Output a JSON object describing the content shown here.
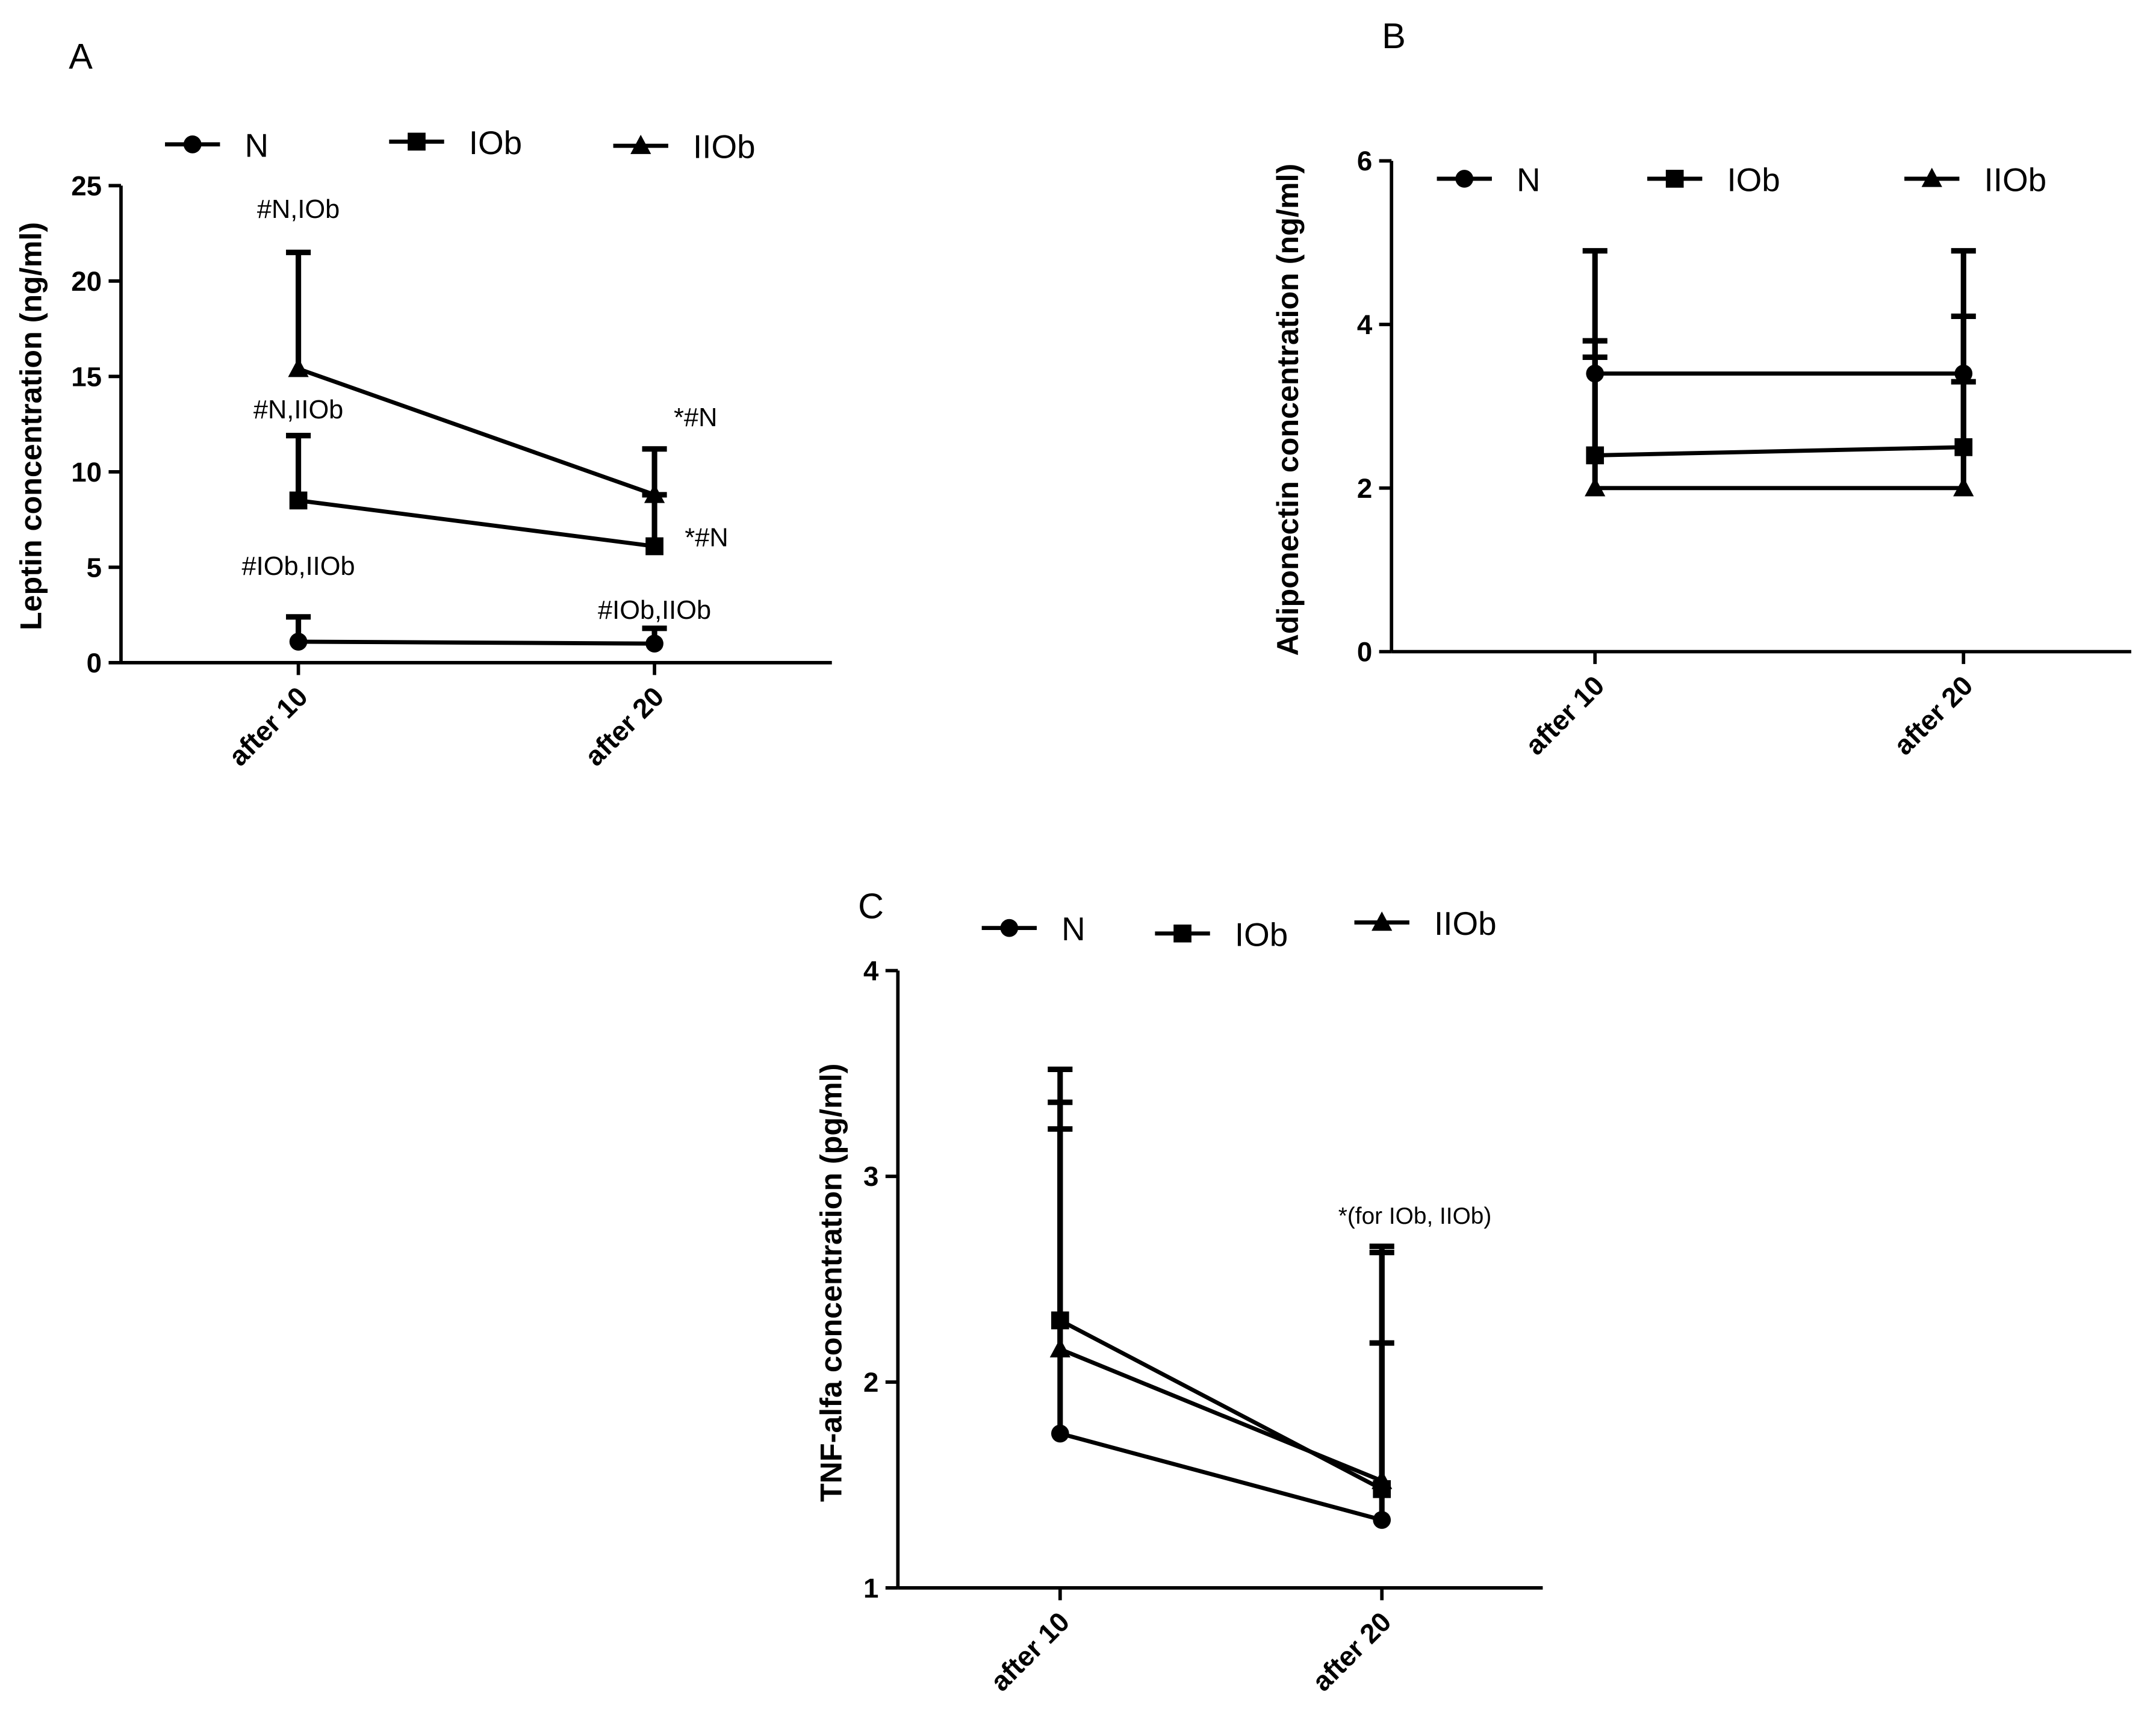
{
  "chart_data": [
    {
      "panel": "A",
      "type": "line",
      "title": "",
      "ylabel": "Leptin concentration (ng/ml)",
      "xlabel": "",
      "categories": [
        "after 10",
        "after 20"
      ],
      "ylim": [
        0,
        25
      ],
      "yticks": [
        0,
        5,
        10,
        15,
        20,
        25
      ],
      "legend": {
        "position": "top",
        "entries": [
          "N",
          "IOb",
          "IIOb"
        ]
      },
      "series": [
        {
          "name": "N",
          "marker": "circle",
          "values": [
            1.1,
            1.0
          ],
          "err_top": [
            2.4,
            1.8
          ]
        },
        {
          "name": "IOb",
          "marker": "square",
          "values": [
            8.5,
            6.1
          ],
          "err_top": [
            11.9,
            8.8
          ]
        },
        {
          "name": "IIOb",
          "marker": "triangle",
          "values": [
            15.4,
            8.8
          ],
          "err_top": [
            21.5,
            11.2
          ]
        }
      ],
      "annotations": [
        {
          "text": "#N,IOb",
          "category": 0,
          "y": 23.3,
          "size": "normal"
        },
        {
          "text": "#N,IIOb",
          "category": 0,
          "y": 12.8,
          "size": "normal"
        },
        {
          "text": "#IOb,IIOb",
          "category": 0,
          "y": 4.6,
          "size": "normal"
        },
        {
          "text": "*#N",
          "category": 1,
          "y": 12.4,
          "dx": 14,
          "anchor": "start",
          "size": "normal"
        },
        {
          "text": "*#N",
          "category": 1,
          "y": 6.1,
          "dx": 22,
          "anchor": "start",
          "size": "normal"
        },
        {
          "text": "#IOb,IIOb",
          "category": 1,
          "y": 2.3,
          "size": "normal"
        }
      ]
    },
    {
      "panel": "B",
      "type": "line",
      "title": "",
      "ylabel": "Adiponectin concentration (ng/ml)",
      "xlabel": "",
      "categories": [
        "after 10",
        "after 20"
      ],
      "ylim": [
        0,
        6
      ],
      "yticks": [
        0,
        2,
        4,
        6
      ],
      "legend": {
        "position": "top",
        "entries": [
          "N",
          "IOb",
          "IIOb"
        ]
      },
      "series": [
        {
          "name": "N",
          "marker": "circle",
          "values": [
            3.4,
            3.4
          ],
          "err_top": [
            4.9,
            4.9
          ]
        },
        {
          "name": "IOb",
          "marker": "square",
          "values": [
            2.4,
            2.5
          ],
          "err_top": [
            3.8,
            4.1
          ]
        },
        {
          "name": "IIOb",
          "marker": "triangle",
          "values": [
            2.0,
            2.0
          ],
          "err_top": [
            3.6,
            3.3
          ]
        }
      ],
      "annotations": []
    },
    {
      "panel": "C",
      "type": "line",
      "title": "",
      "ylabel": "TNF-alfa concentration (pg/ml)",
      "xlabel": "",
      "categories": [
        "after 10",
        "after 20"
      ],
      "ylim": [
        1,
        4
      ],
      "yticks": [
        1,
        2,
        3,
        4
      ],
      "legend": {
        "position": "top",
        "entries": [
          "N",
          "IOb",
          "IIOb"
        ]
      },
      "series": [
        {
          "name": "N",
          "marker": "circle",
          "values": [
            1.75,
            1.33
          ],
          "err_top": [
            3.23,
            2.19
          ]
        },
        {
          "name": "IOb",
          "marker": "square",
          "values": [
            2.3,
            1.48
          ],
          "err_top": [
            3.52,
            2.66
          ]
        },
        {
          "name": "IIOb",
          "marker": "triangle",
          "values": [
            2.16,
            1.52
          ],
          "err_top": [
            3.36,
            2.63
          ]
        }
      ],
      "annotations": [
        {
          "text": "*(for IOb, IIOb)",
          "category": 1,
          "y": 2.77,
          "dx": 24,
          "size": "small"
        }
      ]
    }
  ]
}
